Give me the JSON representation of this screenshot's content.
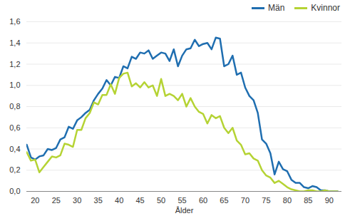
{
  "chart_data": {
    "type": "line",
    "x_label": "Ålder",
    "x": [
      18,
      19,
      20,
      21,
      22,
      23,
      24,
      25,
      26,
      27,
      28,
      29,
      30,
      31,
      32,
      33,
      34,
      35,
      36,
      37,
      38,
      39,
      40,
      41,
      42,
      43,
      44,
      45,
      46,
      47,
      48,
      49,
      50,
      51,
      52,
      53,
      54,
      55,
      56,
      57,
      58,
      59,
      60,
      61,
      62,
      63,
      64,
      65,
      66,
      67,
      68,
      69,
      70,
      71,
      72,
      73,
      74,
      75,
      76,
      77,
      78,
      79,
      80,
      81,
      82,
      83,
      84,
      85,
      86,
      87,
      88,
      89,
      90,
      91,
      92
    ],
    "series": [
      {
        "name": "Män",
        "color": "#1f6eb0",
        "values": [
          0.44,
          0.32,
          0.3,
          0.33,
          0.34,
          0.4,
          0.39,
          0.41,
          0.49,
          0.51,
          0.61,
          0.59,
          0.67,
          0.7,
          0.74,
          0.77,
          0.86,
          0.92,
          0.97,
          1.05,
          1.0,
          1.08,
          1.07,
          1.18,
          1.16,
          1.27,
          1.25,
          1.31,
          1.3,
          1.33,
          1.25,
          1.28,
          1.31,
          1.3,
          1.23,
          1.34,
          1.18,
          1.28,
          1.34,
          1.35,
          1.43,
          1.37,
          1.39,
          1.4,
          1.34,
          1.45,
          1.44,
          1.18,
          1.2,
          1.28,
          1.1,
          1.12,
          0.98,
          0.9,
          0.86,
          0.74,
          0.49,
          0.45,
          0.36,
          0.16,
          0.28,
          0.21,
          0.19,
          0.11,
          0.08,
          0.08,
          0.04,
          0.03,
          0.05,
          0.04,
          0.01,
          0.01,
          0.0,
          0.0,
          0.0
        ]
      },
      {
        "name": "Kvinnor",
        "color": "#b5d334",
        "values": [
          0.37,
          0.29,
          0.3,
          0.18,
          0.23,
          0.28,
          0.33,
          0.32,
          0.34,
          0.45,
          0.44,
          0.42,
          0.58,
          0.58,
          0.69,
          0.74,
          0.84,
          0.82,
          0.91,
          0.91,
          1.01,
          0.92,
          1.07,
          1.11,
          1.12,
          0.99,
          1.02,
          0.98,
          1.03,
          0.98,
          1.0,
          0.9,
          1.06,
          0.9,
          0.92,
          0.9,
          0.86,
          0.92,
          0.8,
          0.88,
          0.8,
          0.75,
          0.73,
          0.64,
          0.72,
          0.69,
          0.71,
          0.6,
          0.55,
          0.6,
          0.48,
          0.44,
          0.35,
          0.36,
          0.31,
          0.29,
          0.2,
          0.15,
          0.13,
          0.08,
          0.1,
          0.07,
          0.04,
          0.02,
          0.01,
          0.0,
          0.0,
          0.01,
          0.01,
          0.0,
          0.0,
          0.01,
          0.0,
          0.0,
          0.0
        ]
      }
    ],
    "xlim": [
      18,
      93
    ],
    "xticks": [
      20,
      25,
      30,
      35,
      40,
      45,
      50,
      55,
      60,
      65,
      70,
      75,
      80,
      85,
      90
    ],
    "ylim": [
      0,
      1.6
    ],
    "yticks": [
      {
        "value": 0,
        "label": "0,0"
      },
      {
        "value": 0.2,
        "label": "0,2"
      },
      {
        "value": 0.4,
        "label": "0,4"
      },
      {
        "value": 0.6,
        "label": "0,6"
      },
      {
        "value": 0.8,
        "label": "0,8"
      },
      {
        "value": 1.0,
        "label": "1,0"
      },
      {
        "value": 1.2,
        "label": "1,2"
      },
      {
        "value": 1.4,
        "label": "1,4"
      },
      {
        "value": 1.6,
        "label": "1,6"
      }
    ],
    "grid": true,
    "legend": "top-right"
  }
}
